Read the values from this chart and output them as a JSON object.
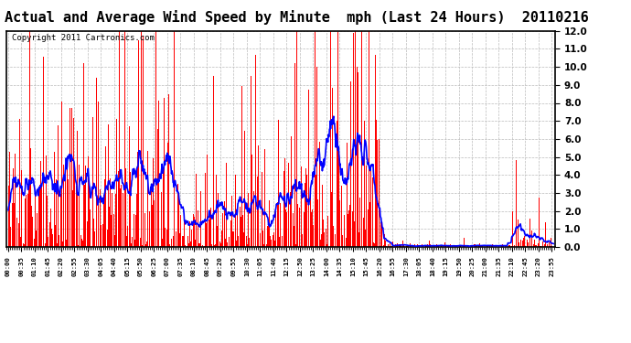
{
  "title": "Actual and Average Wind Speed by Minute  mph (Last 24 Hours)  20110216",
  "copyright": "Copyright 2011 Cartronics.com",
  "ylim": [
    0,
    12.0
  ],
  "yticks": [
    0.0,
    1.0,
    2.0,
    3.0,
    4.0,
    5.0,
    6.0,
    7.0,
    8.0,
    9.0,
    10.0,
    11.0,
    12.0
  ],
  "bar_color": "#FF0000",
  "line_color": "#0000FF",
  "background_color": "#FFFFFF",
  "grid_color": "#BBBBBB",
  "title_fontsize": 11,
  "copyright_fontsize": 6.5,
  "num_minutes": 1440,
  "tick_step": 35
}
